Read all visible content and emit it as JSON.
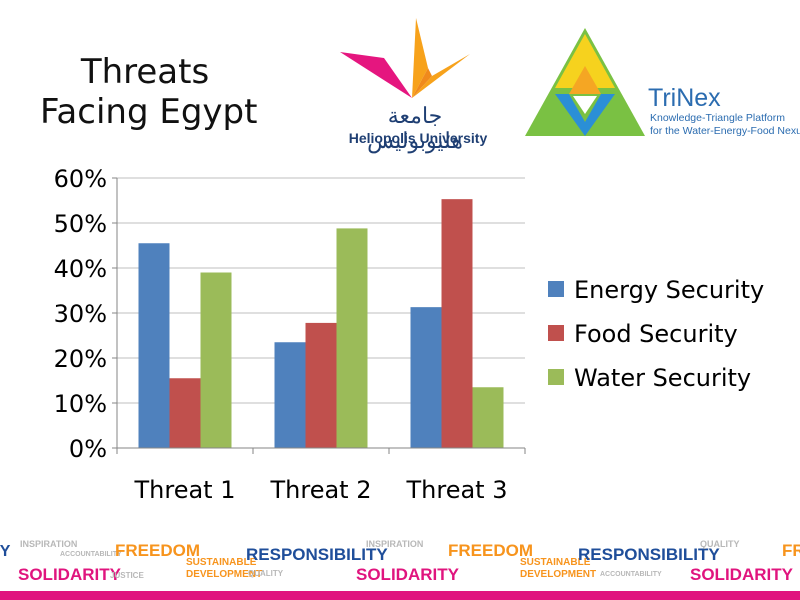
{
  "slide": {
    "title_line1": "Threats",
    "title_line2": "Facing Egypt"
  },
  "logos": {
    "heliopolis": {
      "arabic_text": "جامعة هليوبوليس",
      "english_text": "Heliopolis University",
      "colors": {
        "magenta": "#e5167f",
        "orange": "#f7a21b",
        "navy": "#1f3f73"
      }
    },
    "trinex": {
      "name": "TriNex",
      "tagline1": "Knowledge-Triangle Platform",
      "tagline2": "for the Water-Energy-Food Nexus",
      "colors": {
        "green": "#7ac143",
        "yellow": "#f6d21e",
        "orange": "#f5a623",
        "blue": "#2b8fd6",
        "text": "#2b6cb0"
      }
    }
  },
  "chart_data": {
    "type": "bar",
    "categories": [
      "Threat 1",
      "Threat 2",
      "Threat 3"
    ],
    "series": [
      {
        "name": "Energy Security",
        "values": [
          45.5,
          23.5,
          31.3
        ],
        "color": "#4f81bd"
      },
      {
        "name": "Food Security",
        "values": [
          15.5,
          27.8,
          55.3
        ],
        "color": "#c0504d"
      },
      {
        "name": "Water Security",
        "values": [
          39.0,
          48.8,
          13.5
        ],
        "color": "#9bbb59"
      }
    ],
    "ylim": [
      0,
      60
    ],
    "yticks": [
      0,
      10,
      20,
      30,
      40,
      50,
      60
    ],
    "ytick_labels": [
      "0%",
      "10%",
      "20%",
      "30%",
      "40%",
      "50%",
      "60%"
    ],
    "grid": true,
    "legend_position": "right",
    "title": "",
    "xlabel": "",
    "ylabel": ""
  },
  "footer": {
    "band_color": "#e0147e",
    "words": [
      {
        "text": "SOLIDARITY",
        "color": "#e0147e"
      },
      {
        "text": "FREEDOM",
        "color": "#f7941d"
      },
      {
        "text": "RESPONSIBILITY",
        "color": "#1f4e9a"
      },
      {
        "text": "SUSTAINABLE",
        "color": "#f7941d"
      },
      {
        "text": "DEVELOPMENT",
        "color": "#f7941d"
      },
      {
        "text": "INSPIRATION",
        "color": "#b8b8b8"
      },
      {
        "text": "ACCOUNTABILITY",
        "color": "#b8b8b8"
      },
      {
        "text": "JUSTICE",
        "color": "#b8b8b8"
      },
      {
        "text": "QUALITY",
        "color": "#b8b8b8"
      }
    ]
  }
}
